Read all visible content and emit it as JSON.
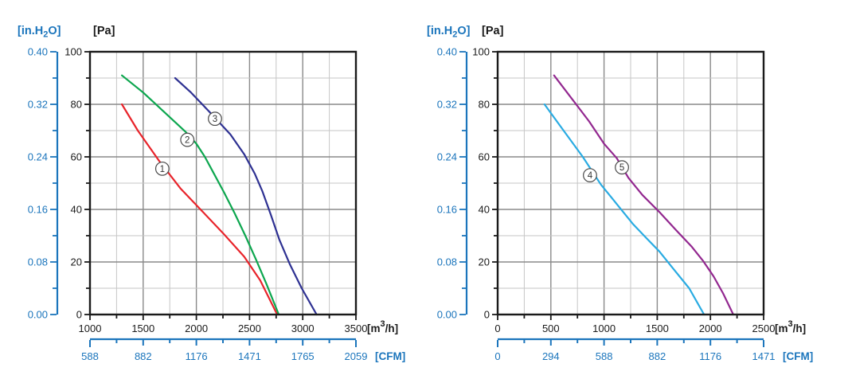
{
  "page": {
    "background": "#FFFFFF"
  },
  "colors": {
    "secondary_axis_blue": "#1B75BC",
    "grid_major": "#8A8A8A",
    "grid_minor": "#C6C6C6",
    "plot_border": "#1A1A1A",
    "text": "#1A1A1A",
    "marker_stroke": "#4A4A4A",
    "marker_fill": "#FFFFFF"
  },
  "chart_data": [
    {
      "type": "line",
      "position": "left",
      "title": "",
      "grid": true,
      "x_axis": {
        "unit_prefix": "[m",
        "unit_sup": "3",
        "unit_suffix": "/h]",
        "min": 1000,
        "max": 3500,
        "major_step": 500,
        "minor_step": 250,
        "tick_labels": [
          "1000",
          "1500",
          "2000",
          "2500",
          "3000",
          "3500"
        ]
      },
      "y_axis": {
        "unit": "[Pa]",
        "min": 0,
        "max": 100,
        "major_step": 20,
        "minor_step": 10,
        "tick_labels": [
          "0",
          "20",
          "40",
          "60",
          "80",
          "100"
        ]
      },
      "y_axis_secondary": {
        "unit_prefix": "[in.H",
        "unit_sub": "2",
        "unit_suffix": "O]",
        "min": 0.0,
        "max": 0.4,
        "major_step": 0.08,
        "minor_step": 0.04,
        "tick_labels": [
          "0.00",
          "0.08",
          "0.16",
          "0.24",
          "0.32",
          "0.40"
        ]
      },
      "x_axis_secondary": {
        "unit": "[CFM]",
        "tick_labels": [
          "588",
          "882",
          "1176",
          "1471",
          "1765",
          "2059"
        ]
      },
      "series": [
        {
          "name": "curve-1",
          "marker_label": "1",
          "color": "#E8232A",
          "marker_x": 1680,
          "marker_y": 55.5,
          "points": [
            [
              1300,
              80
            ],
            [
              1450,
              70
            ],
            [
              1650,
              58.5
            ],
            [
              1850,
              48
            ],
            [
              2050,
              39.5
            ],
            [
              2250,
              31
            ],
            [
              2450,
              22
            ],
            [
              2600,
              13
            ],
            [
              2760,
              0
            ]
          ]
        },
        {
          "name": "curve-2",
          "marker_label": "2",
          "color": "#0CA64E",
          "marker_x": 1915,
          "marker_y": 66.5,
          "points": [
            [
              1300,
              91
            ],
            [
              1500,
              84.5
            ],
            [
              1700,
              77
            ],
            [
              1900,
              69.5
            ],
            [
              2000,
              65
            ],
            [
              2080,
              60
            ],
            [
              2160,
              54
            ],
            [
              2260,
              46.5
            ],
            [
              2360,
              38.5
            ],
            [
              2460,
              30
            ],
            [
              2560,
              21
            ],
            [
              2660,
              11.5
            ],
            [
              2775,
              0
            ]
          ]
        },
        {
          "name": "curve-3",
          "marker_label": "3",
          "color": "#2E3192",
          "marker_x": 2175,
          "marker_y": 74.5,
          "points": [
            [
              1800,
              90
            ],
            [
              1950,
              84.5
            ],
            [
              2150,
              76
            ],
            [
              2320,
              68.5
            ],
            [
              2450,
              61
            ],
            [
              2550,
              53.5
            ],
            [
              2620,
              47
            ],
            [
              2700,
              38
            ],
            [
              2780,
              28.5
            ],
            [
              2880,
              19
            ],
            [
              2990,
              10
            ],
            [
              3130,
              0
            ]
          ]
        }
      ]
    },
    {
      "type": "line",
      "position": "right",
      "title": "",
      "grid": true,
      "x_axis": {
        "unit_prefix": "[m",
        "unit_sup": "3",
        "unit_suffix": "/h]",
        "min": 0,
        "max": 2500,
        "major_step": 500,
        "minor_step": 250,
        "tick_labels": [
          "0",
          "500",
          "1000",
          "1500",
          "2000",
          "2500"
        ]
      },
      "y_axis": {
        "unit": "[Pa]",
        "min": 0,
        "max": 100,
        "major_step": 20,
        "minor_step": 10,
        "tick_labels": [
          "0",
          "20",
          "40",
          "60",
          "80",
          "100"
        ]
      },
      "y_axis_secondary": {
        "unit_prefix": "[in.H",
        "unit_sub": "2",
        "unit_suffix": "O]",
        "min": 0.0,
        "max": 0.4,
        "major_step": 0.08,
        "minor_step": 0.04,
        "tick_labels": [
          "0.00",
          "0.08",
          "0.16",
          "0.24",
          "0.32",
          "0.40"
        ]
      },
      "x_axis_secondary": {
        "unit": "[CFM]",
        "tick_labels": [
          "0",
          "294",
          "588",
          "882",
          "1176",
          "1471"
        ]
      },
      "series": [
        {
          "name": "curve-4",
          "marker_label": "4",
          "color": "#29ABE2",
          "marker_x": 868,
          "marker_y": 53,
          "points": [
            [
              440,
              80
            ],
            [
              620,
              70
            ],
            [
              800,
              60
            ],
            [
              970,
              49.5
            ],
            [
              1100,
              43
            ],
            [
              1270,
              34.5
            ],
            [
              1400,
              29
            ],
            [
              1520,
              24
            ],
            [
              1650,
              17.5
            ],
            [
              1800,
              10
            ],
            [
              1940,
              0
            ]
          ]
        },
        {
          "name": "curve-5",
          "marker_label": "5",
          "color": "#92278F",
          "marker_x": 1168,
          "marker_y": 56,
          "points": [
            [
              530,
              91
            ],
            [
              700,
              82
            ],
            [
              860,
              73.5
            ],
            [
              1000,
              65
            ],
            [
              1120,
              59.5
            ],
            [
              1230,
              52
            ],
            [
              1360,
              45.5
            ],
            [
              1520,
              39
            ],
            [
              1680,
              32
            ],
            [
              1820,
              26
            ],
            [
              1930,
              20.5
            ],
            [
              2030,
              14.5
            ],
            [
              2120,
              8
            ],
            [
              2215,
              0
            ]
          ]
        }
      ]
    }
  ]
}
